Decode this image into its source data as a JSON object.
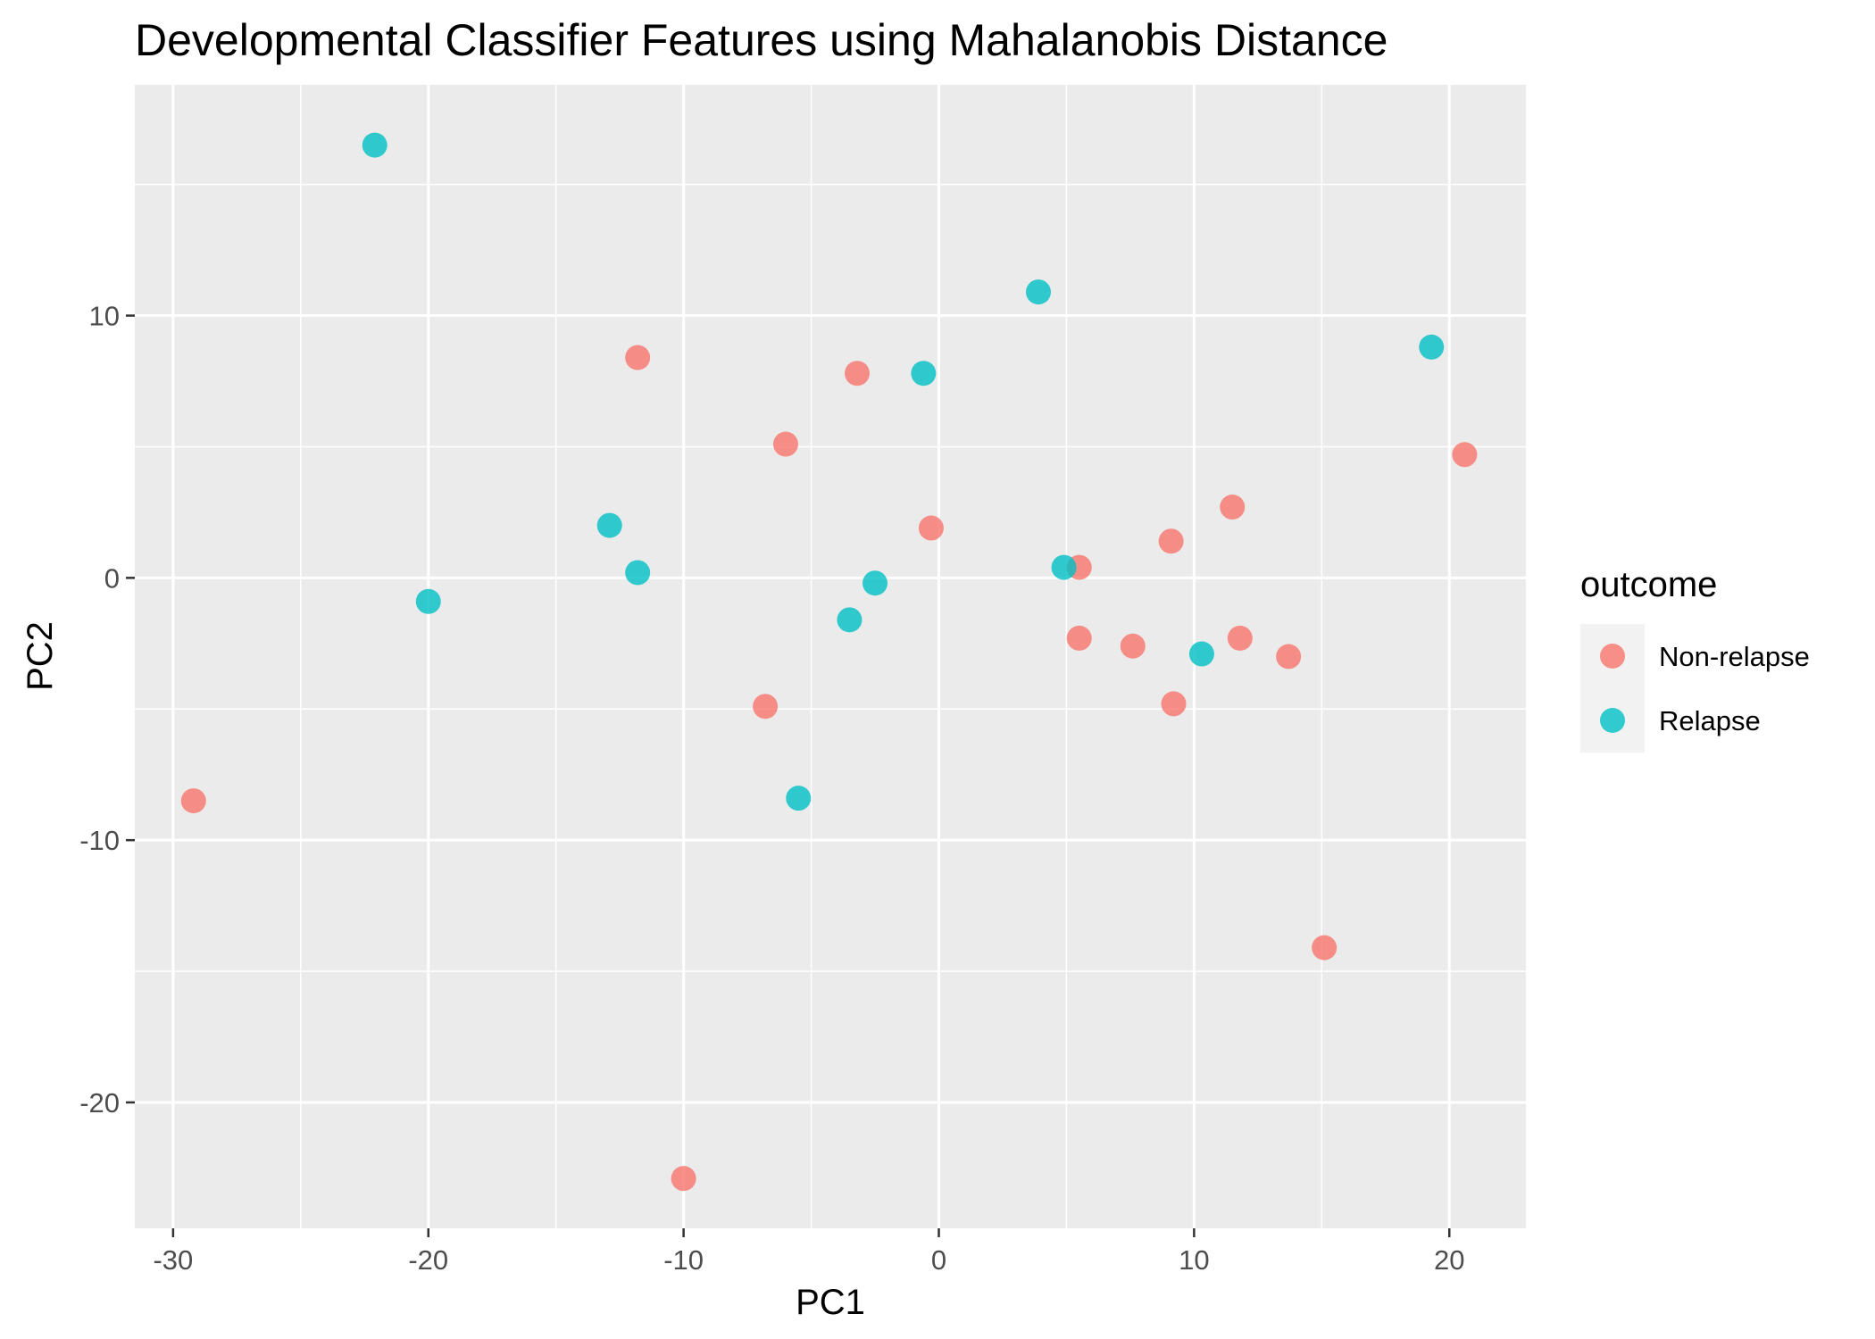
{
  "chart_data": {
    "type": "scatter",
    "title": "Developmental Classifier Features using Mahalanobis Distance",
    "xlabel": "PC1",
    "ylabel": "PC2",
    "xlim": [
      -31.5,
      23
    ],
    "ylim": [
      -24.8,
      18.8
    ],
    "x_ticks": [
      -30,
      -20,
      -10,
      0,
      10,
      20
    ],
    "y_ticks": [
      -20,
      -10,
      0,
      10
    ],
    "x_tick_labels": [
      "-30",
      "-20",
      "-10",
      "0",
      "10",
      "20"
    ],
    "y_tick_labels": [
      "-20",
      "-10",
      "0",
      "10"
    ],
    "grid": true,
    "legend": {
      "title": "outcome",
      "position": "right"
    },
    "series": [
      {
        "name": "Non-relapse",
        "color": "#F8766D",
        "points": [
          {
            "x": -29.2,
            "y": -8.5
          },
          {
            "x": -11.8,
            "y": 8.4
          },
          {
            "x": -10.0,
            "y": -22.9
          },
          {
            "x": -6.8,
            "y": -4.9
          },
          {
            "x": -6.0,
            "y": 5.1
          },
          {
            "x": -3.2,
            "y": 7.8
          },
          {
            "x": -0.3,
            "y": 1.9
          },
          {
            "x": 5.5,
            "y": 0.4
          },
          {
            "x": 5.5,
            "y": -2.3
          },
          {
            "x": 7.6,
            "y": -2.6
          },
          {
            "x": 9.1,
            "y": 1.4
          },
          {
            "x": 9.2,
            "y": -4.8
          },
          {
            "x": 11.5,
            "y": 2.7
          },
          {
            "x": 11.8,
            "y": -2.3
          },
          {
            "x": 13.7,
            "y": -3.0
          },
          {
            "x": 15.1,
            "y": -14.1
          },
          {
            "x": 20.6,
            "y": 4.7
          }
        ]
      },
      {
        "name": "Relapse",
        "color": "#00BFC4",
        "points": [
          {
            "x": -22.1,
            "y": 16.5
          },
          {
            "x": -20.0,
            "y": -0.9
          },
          {
            "x": -12.9,
            "y": 2.0
          },
          {
            "x": -11.8,
            "y": 0.2
          },
          {
            "x": -5.5,
            "y": -8.4
          },
          {
            "x": -3.5,
            "y": -1.6
          },
          {
            "x": -2.5,
            "y": -0.2
          },
          {
            "x": -0.6,
            "y": 7.8
          },
          {
            "x": 3.9,
            "y": 10.9
          },
          {
            "x": 4.9,
            "y": 0.4
          },
          {
            "x": 10.3,
            "y": -2.9
          },
          {
            "x": 19.3,
            "y": 8.8
          }
        ]
      }
    ]
  }
}
